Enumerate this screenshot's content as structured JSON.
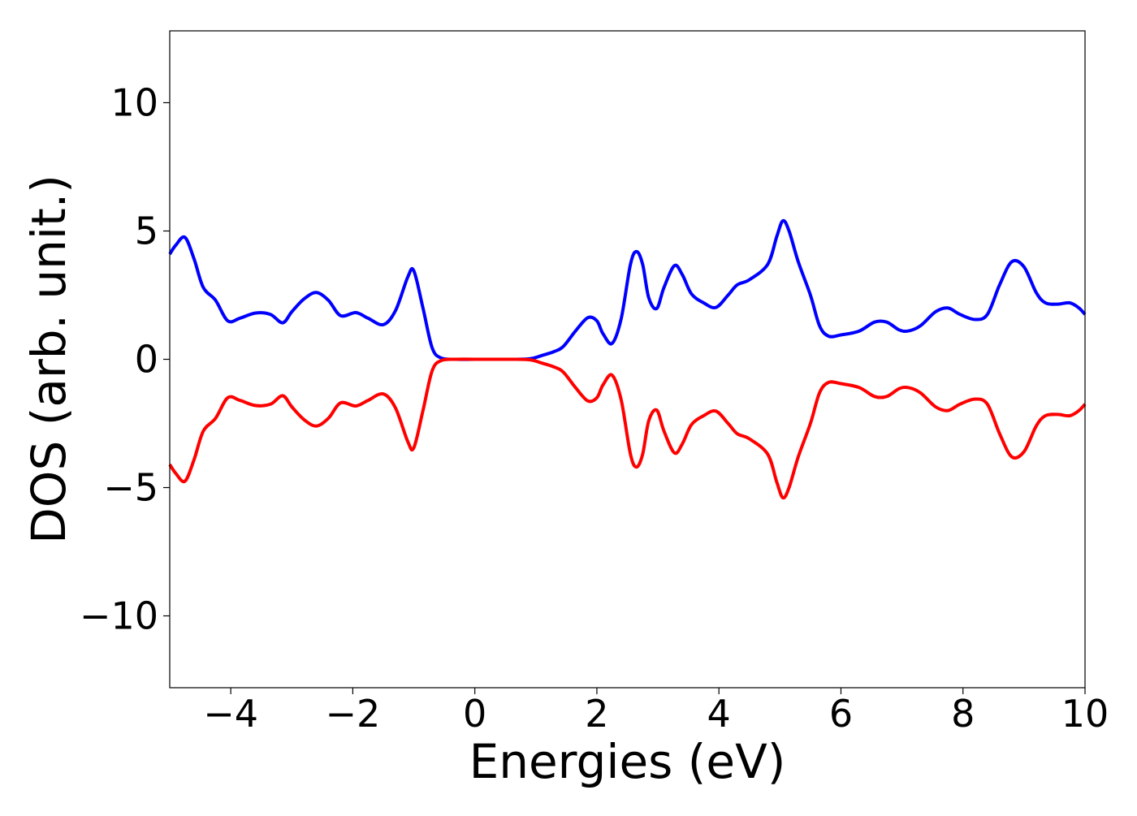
{
  "chart_data": {
    "type": "line",
    "title": "",
    "xlabel": "Energies (eV)",
    "ylabel": "DOS (arb. unit.)",
    "xlim": [
      -5,
      10
    ],
    "ylim": [
      -12.8,
      12.8
    ],
    "xticks": [
      -4,
      -2,
      0,
      2,
      4,
      6,
      8,
      10
    ],
    "yticks": [
      -10,
      -5,
      0,
      5,
      10
    ],
    "xtick_labels": [
      "−4",
      "−2",
      "0",
      "2",
      "4",
      "6",
      "8",
      "10"
    ],
    "ytick_labels": [
      "−10",
      "−5",
      "0",
      "5",
      "10"
    ],
    "grid": false,
    "legend": "none",
    "series": [
      {
        "color": "#0000ff",
        "points": [
          [
            -5.0,
            4.1
          ],
          [
            -4.9,
            4.45
          ],
          [
            -4.75,
            4.75
          ],
          [
            -4.6,
            3.9
          ],
          [
            -4.45,
            2.8
          ],
          [
            -4.25,
            2.3
          ],
          [
            -4.05,
            1.5
          ],
          [
            -3.85,
            1.6
          ],
          [
            -3.6,
            1.8
          ],
          [
            -3.35,
            1.75
          ],
          [
            -3.15,
            1.42
          ],
          [
            -3.0,
            1.85
          ],
          [
            -2.8,
            2.35
          ],
          [
            -2.6,
            2.6
          ],
          [
            -2.4,
            2.3
          ],
          [
            -2.2,
            1.7
          ],
          [
            -1.95,
            1.82
          ],
          [
            -1.75,
            1.6
          ],
          [
            -1.5,
            1.35
          ],
          [
            -1.3,
            1.9
          ],
          [
            -1.1,
            3.2
          ],
          [
            -1.0,
            3.45
          ],
          [
            -0.85,
            2.0
          ],
          [
            -0.7,
            0.45
          ],
          [
            -0.55,
            0.05
          ],
          [
            -0.3,
            0.0
          ],
          [
            0.0,
            0.0
          ],
          [
            0.5,
            0.0
          ],
          [
            0.9,
            0.02
          ],
          [
            1.1,
            0.15
          ],
          [
            1.3,
            0.3
          ],
          [
            1.45,
            0.5
          ],
          [
            1.65,
            1.1
          ],
          [
            1.85,
            1.62
          ],
          [
            2.0,
            1.5
          ],
          [
            2.1,
            1.0
          ],
          [
            2.25,
            0.62
          ],
          [
            2.4,
            1.6
          ],
          [
            2.55,
            3.7
          ],
          [
            2.65,
            4.2
          ],
          [
            2.75,
            3.7
          ],
          [
            2.85,
            2.4
          ],
          [
            2.98,
            1.98
          ],
          [
            3.1,
            2.8
          ],
          [
            3.27,
            3.65
          ],
          [
            3.4,
            3.3
          ],
          [
            3.55,
            2.55
          ],
          [
            3.75,
            2.2
          ],
          [
            3.95,
            2.02
          ],
          [
            4.15,
            2.5
          ],
          [
            4.3,
            2.9
          ],
          [
            4.5,
            3.1
          ],
          [
            4.8,
            3.7
          ],
          [
            4.95,
            4.8
          ],
          [
            5.05,
            5.4
          ],
          [
            5.15,
            5.0
          ],
          [
            5.3,
            3.8
          ],
          [
            5.5,
            2.5
          ],
          [
            5.65,
            1.3
          ],
          [
            5.8,
            0.9
          ],
          [
            6.0,
            0.95
          ],
          [
            6.3,
            1.1
          ],
          [
            6.55,
            1.45
          ],
          [
            6.75,
            1.45
          ],
          [
            6.95,
            1.15
          ],
          [
            7.1,
            1.1
          ],
          [
            7.3,
            1.3
          ],
          [
            7.55,
            1.85
          ],
          [
            7.75,
            2.0
          ],
          [
            7.95,
            1.75
          ],
          [
            8.2,
            1.55
          ],
          [
            8.4,
            1.75
          ],
          [
            8.6,
            2.9
          ],
          [
            8.8,
            3.8
          ],
          [
            9.0,
            3.6
          ],
          [
            9.2,
            2.6
          ],
          [
            9.35,
            2.2
          ],
          [
            9.55,
            2.15
          ],
          [
            9.75,
            2.2
          ],
          [
            9.9,
            2.0
          ],
          [
            10.0,
            1.75
          ]
        ]
      },
      {
        "color": "#ff0000",
        "points": [
          [
            -5.0,
            -4.1
          ],
          [
            -4.9,
            -4.45
          ],
          [
            -4.75,
            -4.75
          ],
          [
            -4.6,
            -3.9
          ],
          [
            -4.45,
            -2.8
          ],
          [
            -4.25,
            -2.3
          ],
          [
            -4.05,
            -1.5
          ],
          [
            -3.85,
            -1.6
          ],
          [
            -3.6,
            -1.8
          ],
          [
            -3.35,
            -1.75
          ],
          [
            -3.15,
            -1.42
          ],
          [
            -3.0,
            -1.85
          ],
          [
            -2.8,
            -2.35
          ],
          [
            -2.6,
            -2.6
          ],
          [
            -2.4,
            -2.3
          ],
          [
            -2.2,
            -1.7
          ],
          [
            -1.95,
            -1.82
          ],
          [
            -1.75,
            -1.6
          ],
          [
            -1.5,
            -1.35
          ],
          [
            -1.3,
            -1.9
          ],
          [
            -1.1,
            -3.2
          ],
          [
            -1.0,
            -3.45
          ],
          [
            -0.85,
            -2.0
          ],
          [
            -0.7,
            -0.45
          ],
          [
            -0.55,
            -0.05
          ],
          [
            -0.3,
            0.0
          ],
          [
            0.0,
            0.0
          ],
          [
            0.5,
            0.0
          ],
          [
            0.9,
            -0.02
          ],
          [
            1.1,
            -0.15
          ],
          [
            1.3,
            -0.3
          ],
          [
            1.45,
            -0.5
          ],
          [
            1.65,
            -1.1
          ],
          [
            1.85,
            -1.62
          ],
          [
            2.0,
            -1.5
          ],
          [
            2.1,
            -1.0
          ],
          [
            2.25,
            -0.62
          ],
          [
            2.4,
            -1.6
          ],
          [
            2.55,
            -3.7
          ],
          [
            2.65,
            -4.2
          ],
          [
            2.75,
            -3.7
          ],
          [
            2.85,
            -2.4
          ],
          [
            2.98,
            -1.98
          ],
          [
            3.1,
            -2.8
          ],
          [
            3.27,
            -3.65
          ],
          [
            3.4,
            -3.3
          ],
          [
            3.55,
            -2.55
          ],
          [
            3.75,
            -2.2
          ],
          [
            3.95,
            -2.02
          ],
          [
            4.15,
            -2.5
          ],
          [
            4.3,
            -2.9
          ],
          [
            4.5,
            -3.1
          ],
          [
            4.8,
            -3.7
          ],
          [
            4.95,
            -4.8
          ],
          [
            5.05,
            -5.4
          ],
          [
            5.15,
            -5.0
          ],
          [
            5.3,
            -3.8
          ],
          [
            5.5,
            -2.5
          ],
          [
            5.65,
            -1.3
          ],
          [
            5.8,
            -0.9
          ],
          [
            6.0,
            -0.95
          ],
          [
            6.3,
            -1.1
          ],
          [
            6.55,
            -1.45
          ],
          [
            6.75,
            -1.45
          ],
          [
            6.95,
            -1.15
          ],
          [
            7.1,
            -1.1
          ],
          [
            7.3,
            -1.3
          ],
          [
            7.55,
            -1.85
          ],
          [
            7.75,
            -2.0
          ],
          [
            7.95,
            -1.75
          ],
          [
            8.2,
            -1.55
          ],
          [
            8.4,
            -1.75
          ],
          [
            8.6,
            -2.9
          ],
          [
            8.8,
            -3.8
          ],
          [
            9.0,
            -3.6
          ],
          [
            9.2,
            -2.6
          ],
          [
            9.35,
            -2.2
          ],
          [
            9.55,
            -2.15
          ],
          [
            9.75,
            -2.2
          ],
          [
            9.9,
            -2.0
          ],
          [
            10.0,
            -1.75
          ]
        ]
      }
    ]
  }
}
